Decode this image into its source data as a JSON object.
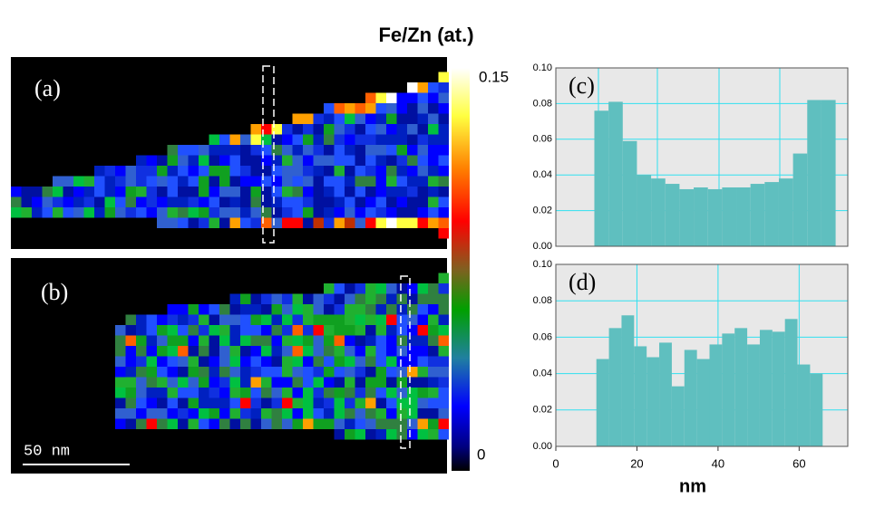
{
  "title": "Fe/Zn (at.)",
  "colorbar": {
    "top_label": "0.15",
    "bottom_label": "0"
  },
  "maps": [
    {
      "label": "(a)"
    },
    {
      "label": "(b)",
      "scale_bar": "50 nm"
    }
  ],
  "chart_data": [
    {
      "type": "histogram",
      "label": "(c)",
      "bins": [
        9.5,
        13,
        16.5,
        20,
        23.5,
        27,
        30.5,
        34,
        37.5,
        41,
        44.5,
        48,
        51.5,
        55,
        58.5,
        62,
        65.5,
        69
      ],
      "values": [
        0.076,
        0.081,
        0.059,
        0.04,
        0.038,
        0.035,
        0.032,
        0.033,
        0.032,
        0.033,
        0.033,
        0.035,
        0.036,
        0.038,
        0.052,
        0.082,
        0.082
      ],
      "color": "#5fbfbf",
      "xlim": [
        0,
        72
      ],
      "ylim": [
        0,
        0.1
      ],
      "yticks": [
        {
          "value": 0,
          "label": "0.00"
        },
        {
          "value": 0.02,
          "label": "0.02"
        },
        {
          "value": 0.04,
          "label": "0.04"
        },
        {
          "value": 0.06,
          "label": "0.06"
        },
        {
          "value": 0.08,
          "label": "0.08"
        },
        {
          "value": 0.1,
          "label": "0.10"
        }
      ],
      "grid": true
    },
    {
      "type": "histogram",
      "label": "(d)",
      "bins": [
        10,
        13.1,
        16.2,
        19.3,
        22.4,
        25.5,
        28.6,
        31.7,
        34.8,
        37.9,
        41,
        44.1,
        47.2,
        50.3,
        53.4,
        56.5,
        59.6,
        62.7,
        65.8
      ],
      "values": [
        0.048,
        0.065,
        0.072,
        0.055,
        0.049,
        0.057,
        0.033,
        0.053,
        0.048,
        0.056,
        0.062,
        0.065,
        0.056,
        0.064,
        0.063,
        0.07,
        0.045,
        0.04
      ],
      "color": "#5fbfbf",
      "xlim": [
        0,
        72
      ],
      "ylim": [
        0,
        0.1
      ],
      "yticks": [
        {
          "value": 0,
          "label": "0.00"
        },
        {
          "value": 0.02,
          "label": "0.02"
        },
        {
          "value": 0.04,
          "label": "0.04"
        },
        {
          "value": 0.06,
          "label": "0.06"
        },
        {
          "value": 0.08,
          "label": "0.08"
        },
        {
          "value": 0.1,
          "label": "0.10"
        }
      ],
      "xticks": [
        0,
        20,
        40,
        60
      ],
      "x_label": "nm",
      "grid": true
    }
  ]
}
